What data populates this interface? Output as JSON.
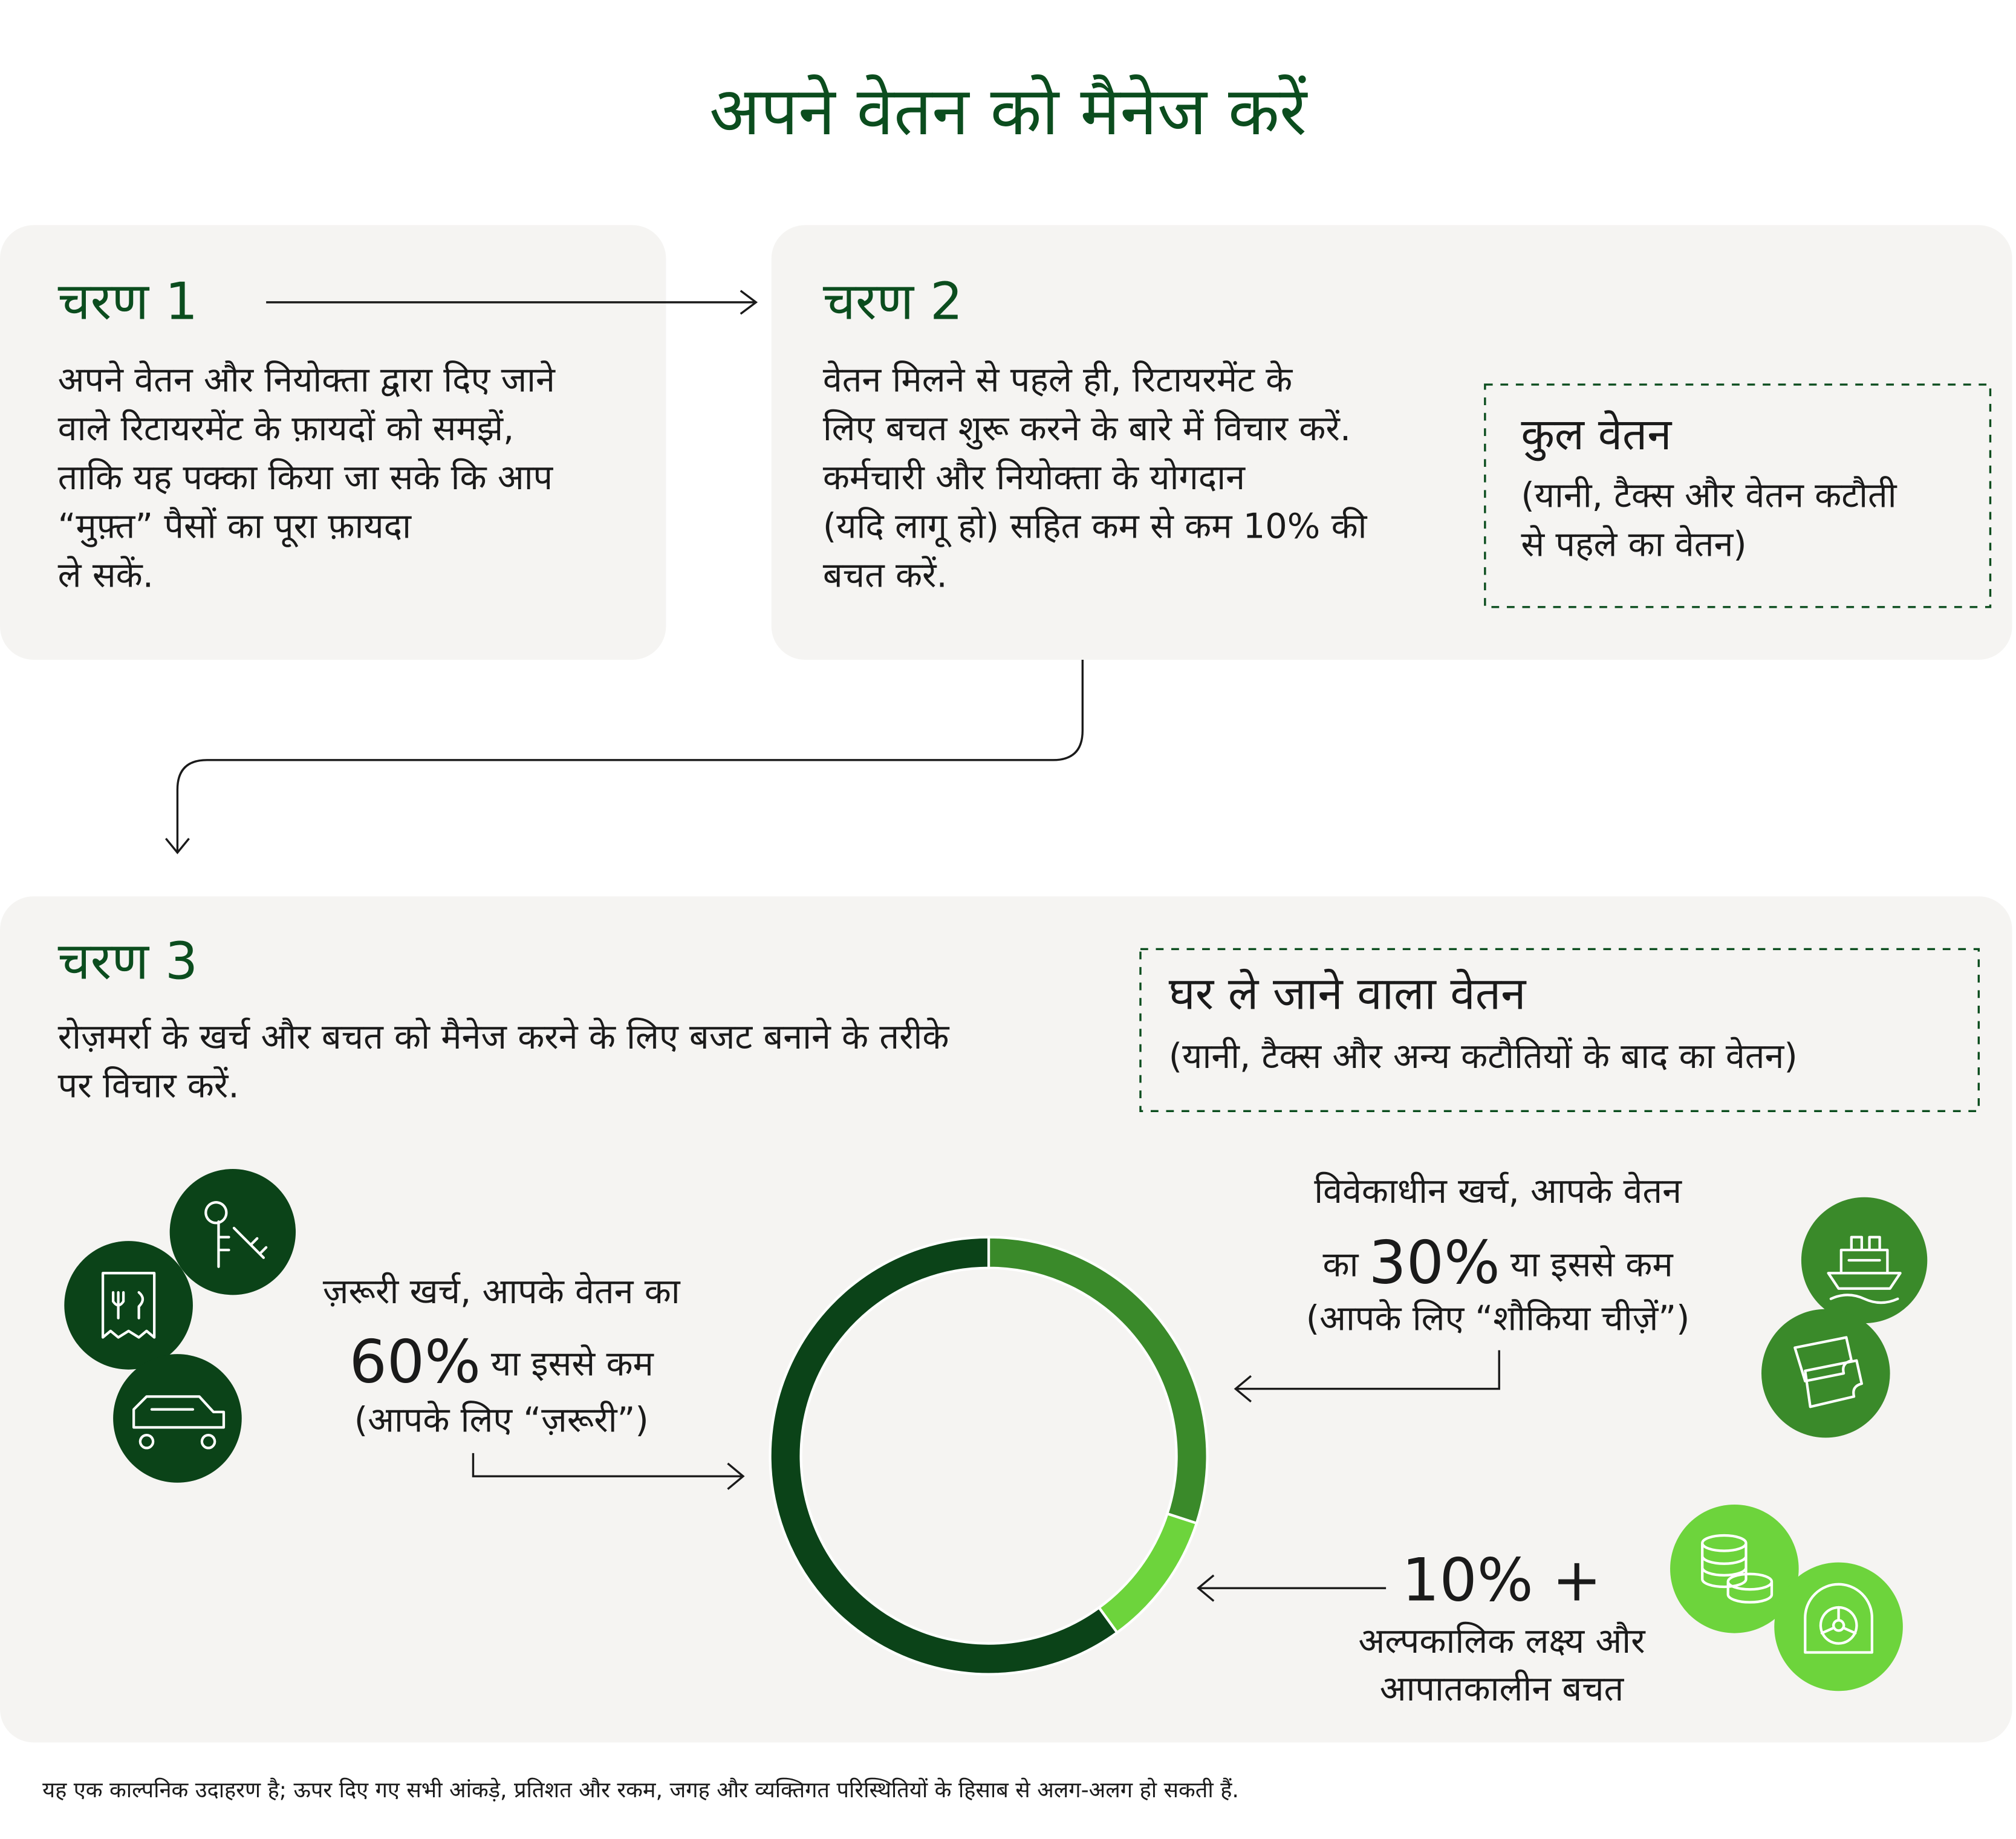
{
  "title": "अपने वेतन को मैनेज करें",
  "steps": [
    {
      "heading": "चरण 1",
      "lines": [
        "अपने वेतन और नियोक्ता द्वारा दिए जाने",
        "वाले रिटायरमेंट के फ़ायदों को समझें,",
        "ताकि यह पक्का किया जा सके कि आप",
        "“मुफ़्त” पैसों का पूरा फ़ायदा",
        "ले सकें."
      ]
    },
    {
      "heading": "चरण 2",
      "lines": [
        "वेतन मिलने से पहले ही, रिटायरमेंट के",
        "लिए बचत शुरू करने के बारे में विचार करें.",
        "कर्मचारी और नियोक्ता के योगदान",
        "(यदि लागू हो) सहित कम से कम 10% की",
        "बचत करें."
      ]
    },
    {
      "heading": "चरण 3",
      "lines": [
        "रोज़मर्रा के खर्च और बचत को मैनेज करने के लिए बजट बनाने के तरीके",
        "पर विचार करें."
      ]
    }
  ],
  "gross_pay": {
    "title": "कुल वेतन",
    "lines": [
      "(यानी, टैक्स और वेतन कटौती",
      "से पहले का वेतन)"
    ]
  },
  "take_home": {
    "title": "घर ले जाने वाला वेतन",
    "lines": [
      "(यानी, टैक्स और अन्य कटौतियों के बाद का वेतन)"
    ]
  },
  "chart_data": {
    "type": "donut",
    "values": [
      60,
      30,
      10
    ],
    "value_labels": [
      "60%",
      "30%",
      "10% +"
    ],
    "colors": [
      "#0b4318",
      "#3a8a2a",
      "#6dd43c"
    ],
    "before": [
      "ज़रूरी खर्च, आपके वेतन का",
      "विवेकाधीन खर्च, आपके वेतन\nका",
      ""
    ],
    "after": [
      "या इससे कम",
      "या इससे कम",
      ""
    ],
    "notes": [
      [
        "(आपके लिए “ज़रूरी”)"
      ],
      [
        "(आपके लिए “शौकिया चीज़ें”)"
      ],
      [
        "अल्पकालिक लक्ष्य और",
        "आपातकालीन बचत"
      ]
    ]
  },
  "footnote": "यह एक काल्पनिक उदाहरण है; ऊपर दिए गए सभी आंकड़े, प्रतिशत और रकम, जगह और व्यक्तिगत परिस्थितियों के हिसाब से अलग-अलग हो सकती हैं."
}
